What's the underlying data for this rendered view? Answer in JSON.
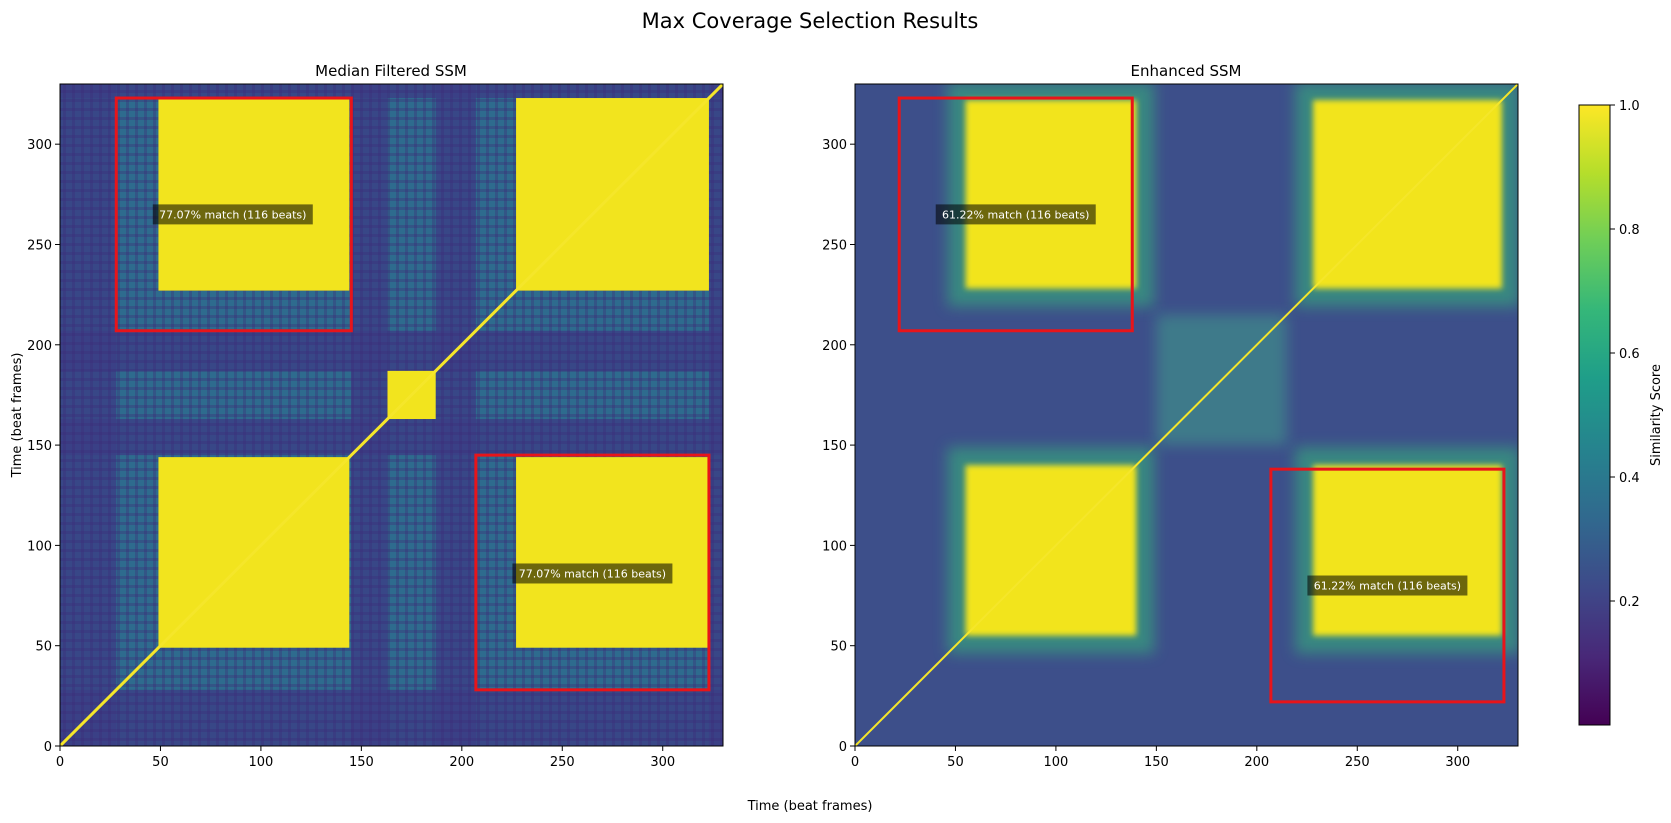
{
  "figure": {
    "title": "Max Coverage Selection Results",
    "xlabel": "Time (beat frames)",
    "ylabel": "Time (beat frames)"
  },
  "chart_data": [
    {
      "type": "heatmap",
      "title": "Median Filtered SSM",
      "xlim": [
        0,
        330
      ],
      "ylim": [
        0,
        330
      ],
      "xticks": [
        0,
        50,
        100,
        150,
        200,
        250,
        300
      ],
      "yticks": [
        0,
        50,
        100,
        150,
        200,
        250,
        300
      ],
      "style": "filtered",
      "high_blocks": [
        {
          "x": [
            49,
            144
          ],
          "y": [
            49,
            144
          ]
        },
        {
          "x": [
            227,
            323
          ],
          "y": [
            49,
            144
          ]
        },
        {
          "x": [
            49,
            144
          ],
          "y": [
            227,
            323
          ]
        },
        {
          "x": [
            227,
            323
          ],
          "y": [
            227,
            323
          ]
        },
        {
          "x": [
            163,
            187
          ],
          "y": [
            163,
            187
          ]
        }
      ],
      "selections": [
        {
          "x": [
            28,
            145
          ],
          "y": [
            207,
            323
          ],
          "label": "77.07% match (116 beats)",
          "label_at": [
            86,
            265
          ]
        },
        {
          "x": [
            207,
            323
          ],
          "y": [
            28,
            145
          ],
          "label": "77.07% match (116 beats)",
          "label_at": [
            265,
            86
          ]
        }
      ]
    },
    {
      "type": "heatmap",
      "title": "Enhanced SSM",
      "xlim": [
        0,
        330
      ],
      "ylim": [
        0,
        330
      ],
      "xticks": [
        0,
        50,
        100,
        150,
        200,
        250,
        300
      ],
      "yticks": [
        0,
        50,
        100,
        150,
        200,
        250,
        300
      ],
      "style": "enhanced",
      "high_blocks": [
        {
          "x": [
            55,
            140
          ],
          "y": [
            55,
            140
          ]
        },
        {
          "x": [
            228,
            322
          ],
          "y": [
            55,
            140
          ]
        },
        {
          "x": [
            55,
            140
          ],
          "y": [
            228,
            322
          ]
        },
        {
          "x": [
            228,
            322
          ],
          "y": [
            228,
            322
          ]
        }
      ],
      "selections": [
        {
          "x": [
            22,
            138
          ],
          "y": [
            207,
            323
          ],
          "label": "61.22% match (116 beats)",
          "label_at": [
            80,
            265
          ]
        },
        {
          "x": [
            207,
            323
          ],
          "y": [
            22,
            138
          ],
          "label": "61.22% match (116 beats)",
          "label_at": [
            265,
            80
          ]
        }
      ]
    }
  ],
  "colorbar": {
    "label": "Similarity Score",
    "range": [
      0,
      1.0
    ],
    "ticks": [
      "0.2",
      "0.4",
      "0.6",
      "0.8",
      "1.0"
    ],
    "tick_values": [
      0.2,
      0.4,
      0.6,
      0.8,
      1.0
    ],
    "colormap": "viridis",
    "colors": [
      "#440154",
      "#482878",
      "#3e4989",
      "#31688e",
      "#26828e",
      "#1f9e89",
      "#35b779",
      "#6ece58",
      "#b5de2b",
      "#fde725"
    ]
  },
  "box_color": "#e8141a"
}
